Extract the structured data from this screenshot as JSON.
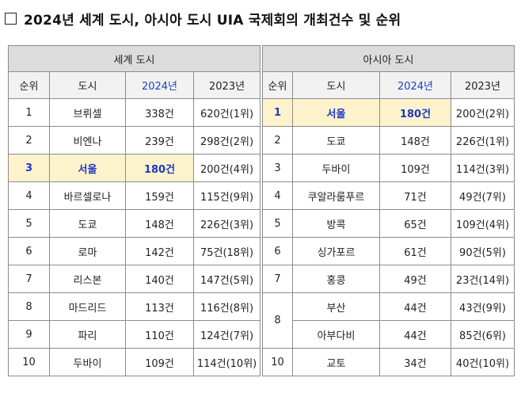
{
  "title": "2024년 세계 도시, 아시아 도시 UIA 국제회의 개최건수 및 순위",
  "world": {
    "group_label": "세계 도시",
    "headers": [
      "순위",
      "도시",
      "2024년",
      "2023년"
    ],
    "rows": [
      {
        "rank": "1",
        "city": "브뤼셀",
        "y2024": "338건",
        "y2023": "620건(1위)"
      },
      {
        "rank": "2",
        "city": "비엔나",
        "y2024": "239건",
        "y2023": "298건(2위)"
      },
      {
        "rank": "3",
        "city": "서울",
        "y2024": "180건",
        "y2023": "200건(4위)"
      },
      {
        "rank": "4",
        "city": "바르셀로나",
        "y2024": "159건",
        "y2023": "115건(9위)"
      },
      {
        "rank": "5",
        "city": "도쿄",
        "y2024": "148건",
        "y2023": "226건(3위)"
      },
      {
        "rank": "6",
        "city": "로마",
        "y2024": "142건",
        "y2023": "75건(18위)"
      },
      {
        "rank": "7",
        "city": "리스본",
        "y2024": "140건",
        "y2023": "147건(5위)"
      },
      {
        "rank": "8",
        "city": "마드리드",
        "y2024": "113건",
        "y2023": "116건(8위)"
      },
      {
        "rank": "9",
        "city": "파리",
        "y2024": "110건",
        "y2023": "124건(7위)"
      },
      {
        "rank": "10",
        "city": "두바이",
        "y2024": "109건",
        "y2023": "114건(10위)"
      }
    ]
  },
  "asia": {
    "group_label": "아시아 도시",
    "headers": [
      "순위",
      "도시",
      "2024년",
      "2023년"
    ],
    "rows": [
      {
        "rank": "1",
        "city": "서울",
        "y2024": "180건",
        "y2023": "200건(2위)"
      },
      {
        "rank": "2",
        "city": "도쿄",
        "y2024": "148건",
        "y2023": "226건(1위)"
      },
      {
        "rank": "3",
        "city": "두바이",
        "y2024": "109건",
        "y2023": "114건(3위)"
      },
      {
        "rank": "4",
        "city": "쿠알라룸푸르",
        "y2024": "71건",
        "y2023": "49건(7위)"
      },
      {
        "rank": "5",
        "city": "방콕",
        "y2024": "65건",
        "y2023": "109건(4위)"
      },
      {
        "rank": "6",
        "city": "싱가포르",
        "y2024": "61건",
        "y2023": "90건(5위)"
      },
      {
        "rank": "7",
        "city": "홍콩",
        "y2024": "49건",
        "y2023": "23건(14위)"
      },
      {
        "rank": "8",
        "city": "부산",
        "y2024": "44건",
        "y2023": "43건(9위)"
      },
      {
        "rank": "",
        "city": "아부다비",
        "y2024": "44건",
        "y2023": "85건(6위)"
      },
      {
        "rank": "10",
        "city": "교토",
        "y2024": "34건",
        "y2023": "40건(10위)"
      }
    ]
  },
  "colors": {
    "highlight_bg": "#fcf2cc",
    "highlight_text": "#2036c4",
    "header_year": "#1f3fbf"
  }
}
